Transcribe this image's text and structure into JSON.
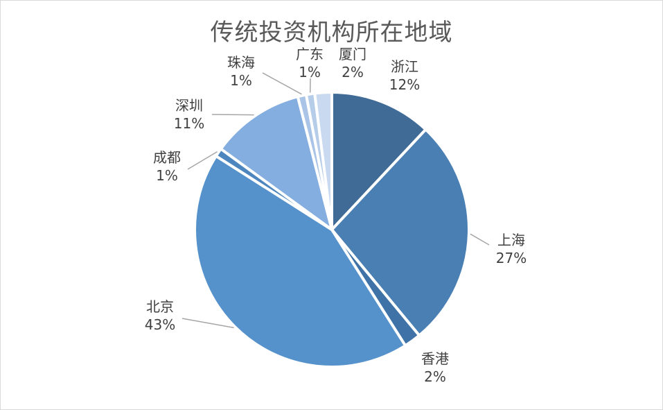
{
  "chart_data": {
    "type": "pie",
    "title": "传统投资机构所在地域",
    "slices": [
      {
        "name": "浙江",
        "pct_label": "12%",
        "value": 12,
        "color": "#3f6b96"
      },
      {
        "name": "上海",
        "pct_label": "27%",
        "value": 27,
        "color": "#4a7fb4"
      },
      {
        "name": "香港",
        "pct_label": "2%",
        "value": 2,
        "color": "#3f73a8"
      },
      {
        "name": "北京",
        "pct_label": "43%",
        "value": 43,
        "color": "#5592cc"
      },
      {
        "name": "成都",
        "pct_label": "1%",
        "value": 1,
        "color": "#4d86be"
      },
      {
        "name": "深圳",
        "pct_label": "11%",
        "value": 11,
        "color": "#84ade0"
      },
      {
        "name": "珠海",
        "pct_label": "1%",
        "value": 1,
        "color": "#a9c4e6"
      },
      {
        "name": "广东",
        "pct_label": "1%",
        "value": 1,
        "color": "#b6cde9"
      },
      {
        "name": "厦门",
        "pct_label": "2%",
        "value": 2,
        "color": "#c9daf0"
      }
    ],
    "legend": "none",
    "data_labels": "category and percentage"
  }
}
